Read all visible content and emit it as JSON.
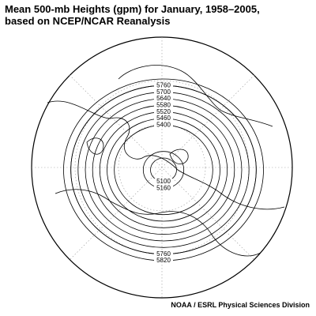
{
  "header": {
    "title": [
      "Mean 500-mb Heights (gpm) for January, 1958–2005,",
      "based on NCEP/NCAR Reanalysis"
    ]
  },
  "map": {
    "top_labels": [
      5760,
      5700,
      5640,
      5580,
      5520,
      5460,
      5400
    ],
    "bottom_labels": [
      5100,
      5160,
      5760,
      5820
    ]
  },
  "credit": "NOAA / ESRL Physical Sciences Division"
}
